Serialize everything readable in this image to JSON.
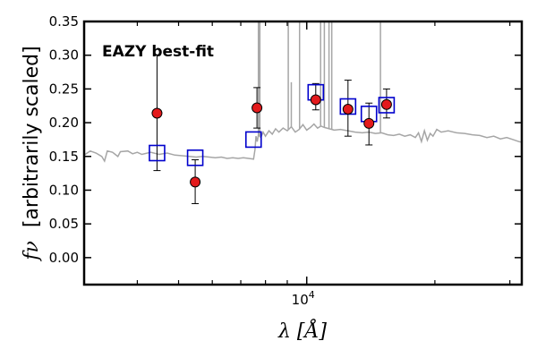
{
  "chart_data": {
    "type": "scatter",
    "title": "",
    "xlabel": "λ [Å]",
    "ylabel": "f_ν [arbitrarily scaled]",
    "ylabel_math": "fν",
    "ylabel_text": "[arbitrarily scaled]",
    "xscale": "log",
    "xlim": [
      3000,
      32000
    ],
    "ylim": [
      -0.04,
      0.35
    ],
    "x_tick_labels": [
      {
        "label_base": "10",
        "label_exp": "4",
        "value": 10000
      }
    ],
    "x_minor_ticks": [
      3000,
      4000,
      5000,
      6000,
      7000,
      8000,
      9000,
      20000,
      30000
    ],
    "y_ticks": [
      0.0,
      0.05,
      0.1,
      0.15,
      0.2,
      0.25,
      0.3,
      0.35
    ],
    "y_tick_labels": [
      "0.00",
      "0.05",
      "0.10",
      "0.15",
      "0.20",
      "0.25",
      "0.30",
      "0.35"
    ],
    "grid": false,
    "annotation": {
      "text": "EAZY best-fit",
      "color": "#ff0000"
    },
    "observed_points": {
      "color": "#e31a1c",
      "points": [
        {
          "x": 4450,
          "y": 0.214,
          "yerr_low": 0.085,
          "yerr_high": 0.086
        },
        {
          "x": 5470,
          "y": 0.112,
          "yerr_low": 0.032,
          "yerr_high": 0.033
        },
        {
          "x": 7640,
          "y": 0.222,
          "yerr_low": 0.03,
          "yerr_high": 0.03
        },
        {
          "x": 10500,
          "y": 0.234,
          "yerr_low": 0.015,
          "yerr_high": 0.024
        },
        {
          "x": 12500,
          "y": 0.22,
          "yerr_low": 0.04,
          "yerr_high": 0.043
        },
        {
          "x": 14000,
          "y": 0.199,
          "yerr_low": 0.032,
          "yerr_high": 0.03
        },
        {
          "x": 15400,
          "y": 0.227,
          "yerr_low": 0.02,
          "yerr_high": 0.023
        }
      ]
    },
    "model_photometry": {
      "color": "#0000cc",
      "points": [
        {
          "x": 4450,
          "y": 0.155
        },
        {
          "x": 5470,
          "y": 0.148
        },
        {
          "x": 7500,
          "y": 0.175
        },
        {
          "x": 10500,
          "y": 0.245
        },
        {
          "x": 12500,
          "y": 0.224
        },
        {
          "x": 14000,
          "y": 0.213
        },
        {
          "x": 15400,
          "y": 0.226
        }
      ]
    },
    "model_spectrum": {
      "color": "#a6a6a6",
      "points": [
        [
          3000,
          0.152
        ],
        [
          3100,
          0.158
        ],
        [
          3200,
          0.155
        ],
        [
          3300,
          0.15
        ],
        [
          3350,
          0.143
        ],
        [
          3400,
          0.158
        ],
        [
          3500,
          0.156
        ],
        [
          3600,
          0.15
        ],
        [
          3650,
          0.157
        ],
        [
          3800,
          0.158
        ],
        [
          3900,
          0.154
        ],
        [
          4000,
          0.156
        ],
        [
          4100,
          0.153
        ],
        [
          4300,
          0.156
        ],
        [
          4500,
          0.153
        ],
        [
          4700,
          0.155
        ],
        [
          4900,
          0.152
        ],
        [
          5100,
          0.151
        ],
        [
          5300,
          0.15
        ],
        [
          5500,
          0.149
        ],
        [
          5700,
          0.15
        ],
        [
          5900,
          0.149
        ],
        [
          6100,
          0.148
        ],
        [
          6300,
          0.149
        ],
        [
          6500,
          0.147
        ],
        [
          6700,
          0.148
        ],
        [
          6900,
          0.147
        ],
        [
          7100,
          0.148
        ],
        [
          7300,
          0.147
        ],
        [
          7500,
          0.146
        ],
        [
          7560,
          0.16
        ],
        [
          7600,
          0.18
        ],
        [
          7650,
          0.172
        ],
        [
          7700,
          0.182
        ],
        [
          7800,
          0.178
        ],
        [
          7900,
          0.186
        ],
        [
          8000,
          0.18
        ],
        [
          8150,
          0.188
        ],
        [
          8300,
          0.183
        ],
        [
          8450,
          0.191
        ],
        [
          8600,
          0.186
        ],
        [
          8800,
          0.192
        ],
        [
          9000,
          0.188
        ],
        [
          9200,
          0.194
        ],
        [
          9400,
          0.186
        ],
        [
          9600,
          0.19
        ],
        [
          9800,
          0.197
        ],
        [
          10000,
          0.189
        ],
        [
          10200,
          0.193
        ],
        [
          10400,
          0.198
        ],
        [
          10600,
          0.192
        ],
        [
          10800,
          0.195
        ],
        [
          11000,
          0.193
        ],
        [
          11300,
          0.191
        ],
        [
          11600,
          0.189
        ],
        [
          12000,
          0.19
        ],
        [
          12500,
          0.188
        ],
        [
          13000,
          0.186
        ],
        [
          13500,
          0.185
        ],
        [
          14000,
          0.186
        ],
        [
          14500,
          0.184
        ],
        [
          15000,
          0.185
        ],
        [
          15500,
          0.182
        ],
        [
          16000,
          0.181
        ],
        [
          16500,
          0.183
        ],
        [
          17000,
          0.18
        ],
        [
          17500,
          0.182
        ],
        [
          18000,
          0.178
        ],
        [
          18300,
          0.185
        ],
        [
          18600,
          0.172
        ],
        [
          18900,
          0.188
        ],
        [
          19200,
          0.174
        ],
        [
          19500,
          0.184
        ],
        [
          19800,
          0.18
        ],
        [
          20200,
          0.19
        ],
        [
          20700,
          0.186
        ],
        [
          21500,
          0.188
        ],
        [
          22500,
          0.185
        ],
        [
          23500,
          0.184
        ],
        [
          24500,
          0.182
        ],
        [
          25500,
          0.181
        ],
        [
          26500,
          0.178
        ],
        [
          27500,
          0.18
        ],
        [
          28500,
          0.176
        ],
        [
          29500,
          0.178
        ],
        [
          30500,
          0.175
        ],
        [
          31500,
          0.172
        ],
        [
          32000,
          0.171
        ]
      ],
      "emission_lines": [
        {
          "x": 7700,
          "peak": 0.4
        },
        {
          "x": 7760,
          "peak": 0.4
        },
        {
          "x": 9050,
          "peak": 0.4
        },
        {
          "x": 9200,
          "peak": 0.26
        },
        {
          "x": 9620,
          "peak": 0.4
        },
        {
          "x": 10780,
          "peak": 0.4
        },
        {
          "x": 11000,
          "peak": 0.4
        },
        {
          "x": 11280,
          "peak": 0.4
        },
        {
          "x": 11450,
          "peak": 0.4
        },
        {
          "x": 14900,
          "peak": 0.4
        }
      ]
    }
  }
}
